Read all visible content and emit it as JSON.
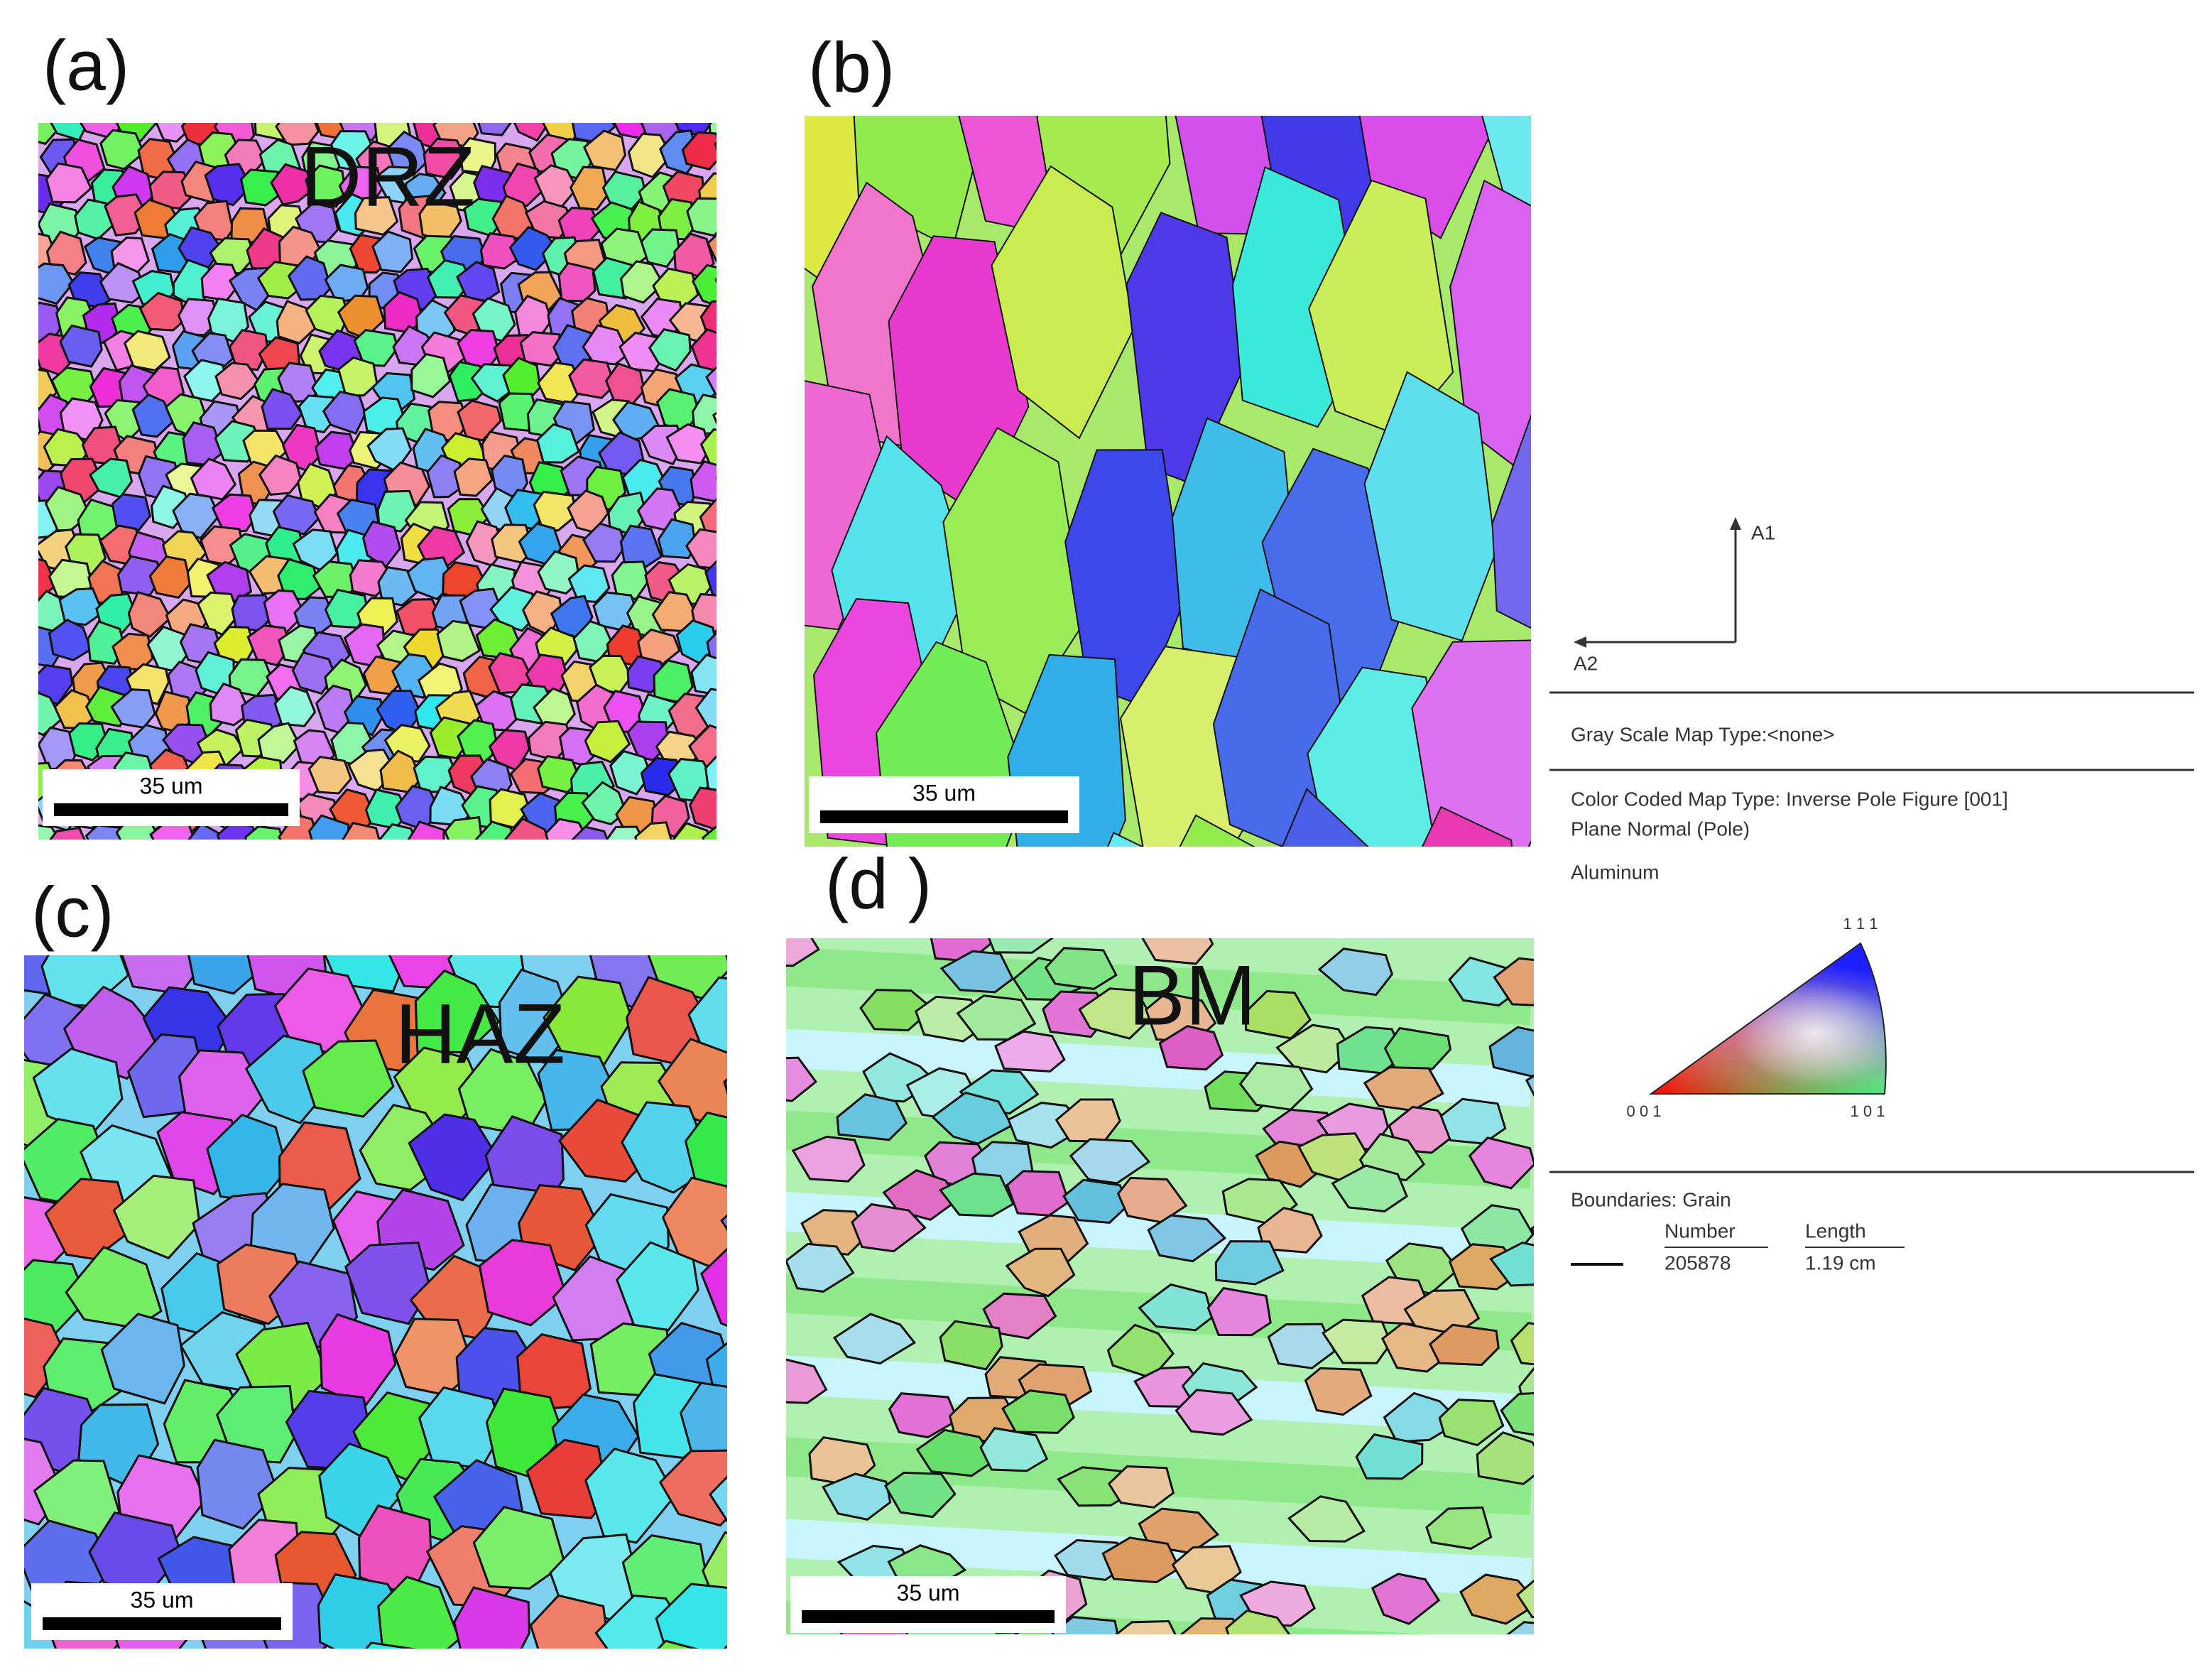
{
  "panels": [
    {
      "label": "(a)",
      "zone": "DRZ",
      "scale_bar": "35 um"
    },
    {
      "label": "(b)",
      "scale_bar": "35 um"
    },
    {
      "label": "(c)",
      "zone": "HAZ",
      "scale_bar": "35 um"
    },
    {
      "label": "(d )",
      "zone": "BM",
      "scale_bar": "35 um"
    }
  ],
  "legend": {
    "axis_1": "A1",
    "axis_2": "A2",
    "gray_scale": "Gray Scale Map Type:<none>",
    "color_coded": [
      "Color Coded Map Type: Inverse Pole Figure [001]",
      "Plane Normal (Pole)"
    ],
    "material": "Aluminum",
    "pole_figure": {
      "top": "1 1 1",
      "left": "0 0 1",
      "right": "1 0 1"
    },
    "boundaries": {
      "title": "Boundaries: Grain",
      "columns": [
        "Number",
        "Length"
      ],
      "values": [
        "205878",
        "1.19 cm"
      ]
    }
  }
}
